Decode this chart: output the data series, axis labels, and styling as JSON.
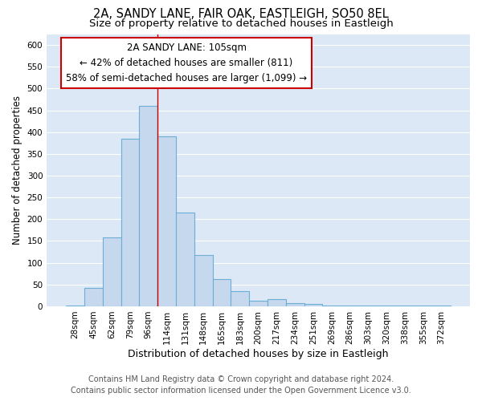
{
  "title1": "2A, SANDY LANE, FAIR OAK, EASTLEIGH, SO50 8EL",
  "title2": "Size of property relative to detached houses in Eastleigh",
  "xlabel": "Distribution of detached houses by size in Eastleigh",
  "ylabel": "Number of detached properties",
  "footer1": "Contains HM Land Registry data © Crown copyright and database right 2024.",
  "footer2": "Contains public sector information licensed under the Open Government Licence v3.0.",
  "categories": [
    "28sqm",
    "45sqm",
    "62sqm",
    "79sqm",
    "96sqm",
    "114sqm",
    "131sqm",
    "148sqm",
    "165sqm",
    "183sqm",
    "200sqm",
    "217sqm",
    "234sqm",
    "251sqm",
    "269sqm",
    "286sqm",
    "303sqm",
    "320sqm",
    "338sqm",
    "355sqm",
    "372sqm"
  ],
  "values": [
    2,
    42,
    158,
    385,
    460,
    390,
    215,
    118,
    62,
    35,
    13,
    17,
    8,
    5,
    2,
    2,
    2,
    1,
    1,
    1,
    1
  ],
  "bar_color": "#c5d8ee",
  "bar_edge_color": "#6baed6",
  "annotation_line1": "2A SANDY LANE: 105sqm",
  "annotation_line2": "← 42% of detached houses are smaller (811)",
  "annotation_line3": "58% of semi-detached houses are larger (1,099) →",
  "annotation_box_color": "#ffffff",
  "annotation_box_edge_color": "#cc0000",
  "red_line_x": 4.5,
  "ylim": [
    0,
    625
  ],
  "yticks": [
    0,
    50,
    100,
    150,
    200,
    250,
    300,
    350,
    400,
    450,
    500,
    550,
    600
  ],
  "bg_color": "#ffffff",
  "plot_bg_color": "#dce8f5",
  "grid_color": "#ffffff",
  "title1_fontsize": 10.5,
  "title2_fontsize": 9.5,
  "xlabel_fontsize": 9,
  "ylabel_fontsize": 8.5,
  "tick_fontsize": 7.5,
  "footer_fontsize": 7
}
